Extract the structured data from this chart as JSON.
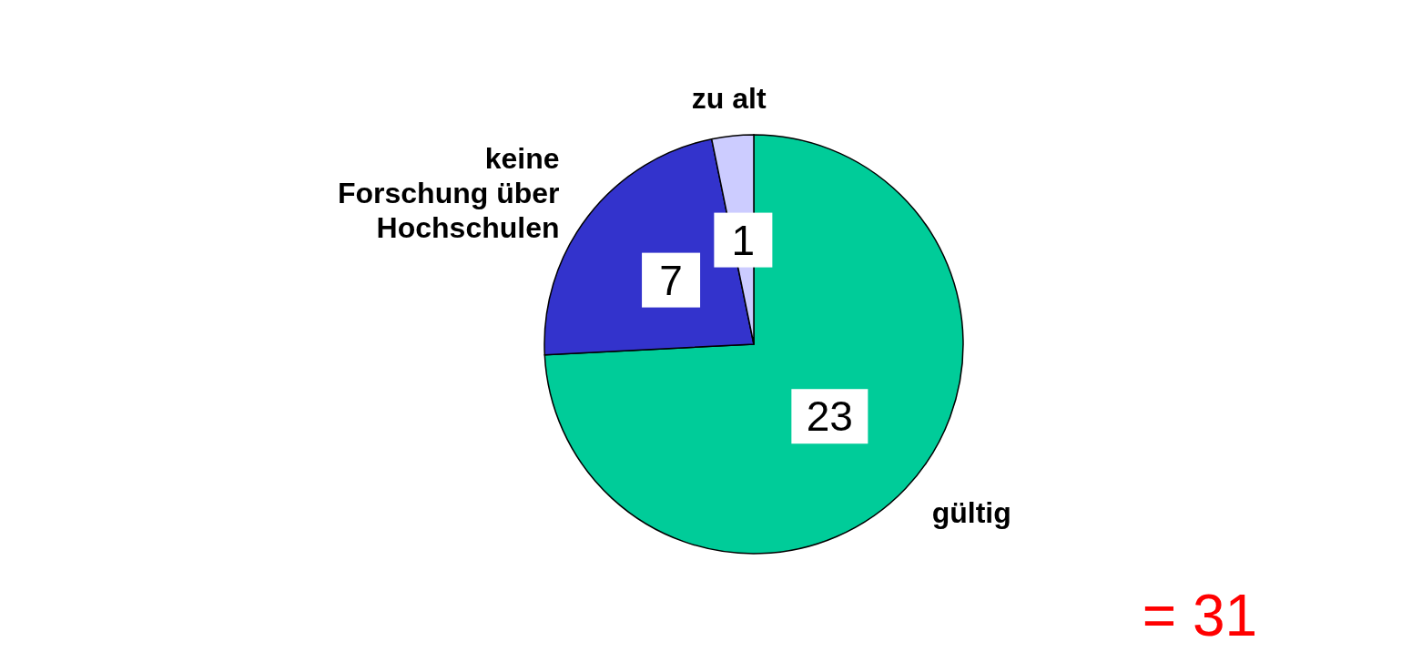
{
  "chart_data": {
    "type": "pie",
    "categories": [
      "gültig",
      "keine Forschung über Hochschulen",
      "zu alt"
    ],
    "values": [
      23,
      7,
      1
    ],
    "colors": [
      "#00cc99",
      "#3333cc",
      "#ccccff"
    ],
    "data_labels": true,
    "annotations": [
      "= 31"
    ]
  }
}
